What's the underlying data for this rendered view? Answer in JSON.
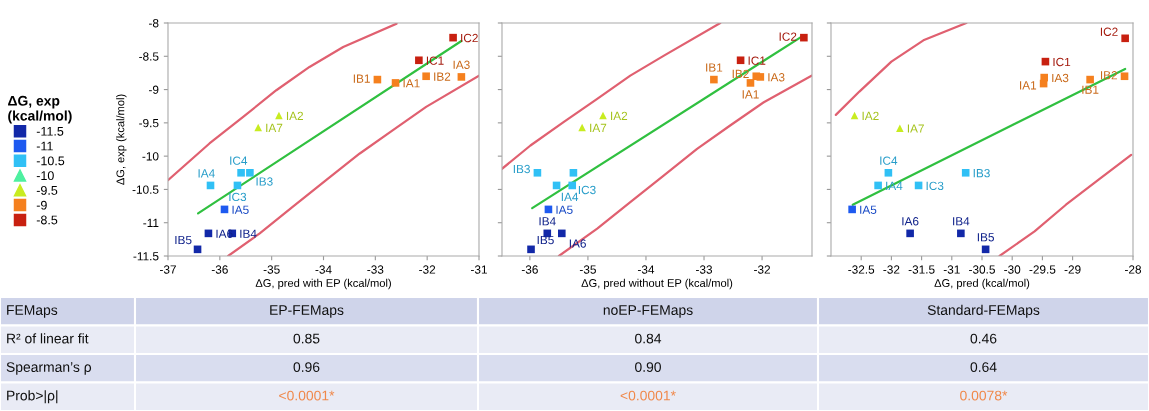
{
  "chart_data": [
    {
      "type": "scatter",
      "xlabel": "ΔG, pred with EP (kcal/mol)",
      "ylabel": "ΔG, exp (kcal/mol)",
      "legend_title": "ΔG, exp\n(kcal/mol)",
      "legend": "left",
      "xlim": [
        -37,
        -31
      ],
      "xticks": [
        -37,
        -36,
        -35,
        -34,
        -33,
        -32,
        -31
      ],
      "ylim": [
        -11.5,
        -8
      ],
      "yticks": [
        -11.5,
        -11,
        -10.5,
        -10,
        -9.5,
        -9,
        -8.5,
        -8
      ],
      "series": [
        {
          "type": "line",
          "color": "#e06070",
          "x": [
            -37,
            -36.2,
            -35.55,
            -34.91,
            -34.27,
            -33.62,
            -32.59
          ],
          "values": [
            -10.36,
            -9.81,
            -9.41,
            -9.01,
            -8.66,
            -8.36,
            -8.01
          ]
        },
        {
          "type": "line",
          "color": "#e06070",
          "x": [
            -35.84,
            -35.23,
            -34.59,
            -33.95,
            -33.3,
            -32.66,
            -32.02,
            -31
          ],
          "values": [
            -11.5,
            -11.16,
            -10.76,
            -10.36,
            -9.96,
            -9.61,
            -9.26,
            -8.79
          ]
        },
        {
          "type": "line",
          "color": "#30c040",
          "x": [
            -36.42,
            -31.34
          ],
          "values": [
            -10.86,
            -8.27
          ]
        },
        {
          "name": "-11.5",
          "color": "#1228a8",
          "marker": "square",
          "x": [
            -36.43,
            -36.22,
            -35.76
          ],
          "values": [
            -11.4,
            -11.16,
            -11.16
          ]
        },
        {
          "name": "-11",
          "color": "#1e5af0",
          "marker": "square",
          "x": [
            -35.91
          ],
          "values": [
            -10.8
          ]
        },
        {
          "name": "-10.5",
          "color": "#30c0f5",
          "marker": "square",
          "x": [
            -36.18,
            -35.66,
            -35.59,
            -35.42
          ],
          "values": [
            -10.44,
            -10.44,
            -10.25,
            -10.25
          ]
        },
        {
          "name": "-10",
          "color": "#4ef0a0",
          "marker": "triangle"
        },
        {
          "name": "-9.5",
          "color": "#c8ec20",
          "marker": "triangle",
          "x": [
            -35.26,
            -34.86
          ],
          "values": [
            -9.57,
            -9.39
          ]
        },
        {
          "name": "-9",
          "color": "#f5801e",
          "marker": "square",
          "x": [
            -32.96,
            -32.61,
            -32.02,
            -31.34
          ],
          "values": [
            -8.85,
            -8.9,
            -8.8,
            -8.81
          ]
        },
        {
          "name": "-8.5",
          "color": "#c82010",
          "marker": "square",
          "x": [
            -32.16,
            -31.5
          ],
          "values": [
            -8.56,
            -8.22
          ]
        }
      ],
      "annotations": [
        {
          "text": "IC2",
          "x": -31.5,
          "y": -8.22
        },
        {
          "text": "IC1",
          "x": -32.16,
          "y": -8.56
        },
        {
          "text": "IB2",
          "x": -32.02,
          "y": -8.8
        },
        {
          "text": "IA3",
          "x": -31.34,
          "y": -8.81
        },
        {
          "text": "IB1",
          "x": -32.96,
          "y": -8.85
        },
        {
          "text": "IA1",
          "x": -32.61,
          "y": -8.9
        },
        {
          "text": "IA2",
          "x": -34.86,
          "y": -9.39
        },
        {
          "text": "IA7",
          "x": -35.26,
          "y": -9.57
        },
        {
          "text": "IC4",
          "x": -35.59,
          "y": -10.25
        },
        {
          "text": "IB3",
          "x": -35.42,
          "y": -10.25
        },
        {
          "text": "IC3",
          "x": -35.66,
          "y": -10.44
        },
        {
          "text": "IA4",
          "x": -36.18,
          "y": -10.44
        },
        {
          "text": "IA5",
          "x": -35.91,
          "y": -10.8
        },
        {
          "text": "IA6",
          "x": -36.22,
          "y": -11.16
        },
        {
          "text": "IB4",
          "x": -35.76,
          "y": -11.16
        },
        {
          "text": "IB5",
          "x": -36.43,
          "y": -11.4
        }
      ]
    },
    {
      "type": "scatter",
      "xlabel": "ΔG, pred without EP (kcal/mol)",
      "tick_labels": "x",
      "xlim": [
        -36.48,
        -31.14
      ],
      "xticks": [
        -36,
        -35,
        -34,
        -33,
        -32
      ],
      "ylim": [
        -11.5,
        -8
      ],
      "yticks": [
        -11.5,
        -11,
        -10.5,
        -10,
        -9.5,
        -9,
        -8.5,
        -8
      ],
      "series": [
        {
          "type": "line",
          "color": "#e06070",
          "x": [
            -36.48,
            -35.99,
            -35.42,
            -34.84,
            -34.27,
            -33.69,
            -32.72
          ],
          "values": [
            -10.19,
            -9.84,
            -9.49,
            -9.14,
            -8.79,
            -8.49,
            -8.0
          ]
        },
        {
          "type": "line",
          "color": "#e06070",
          "x": [
            -35.5,
            -34.84,
            -34.27,
            -33.69,
            -33.12,
            -32.55,
            -31.97,
            -31.14
          ],
          "values": [
            -11.5,
            -11.09,
            -10.69,
            -10.29,
            -9.89,
            -9.54,
            -9.19,
            -8.79
          ]
        },
        {
          "type": "line",
          "color": "#30c040",
          "x": [
            -35.96,
            -31.29
          ],
          "values": [
            -10.78,
            -8.19
          ]
        },
        {
          "color": "#1228a8",
          "marker": "square",
          "x": [
            -35.98,
            -35.45,
            -35.7
          ],
          "values": [
            -11.4,
            -11.16,
            -11.16
          ]
        },
        {
          "color": "#1e5af0",
          "marker": "square",
          "x": [
            -35.68
          ],
          "values": [
            -10.8
          ]
        },
        {
          "color": "#30c0f5",
          "marker": "square",
          "x": [
            -35.54,
            -35.27,
            -35.25,
            -35.87
          ],
          "values": [
            -10.44,
            -10.44,
            -10.25,
            -10.25
          ]
        },
        {
          "color": "#c8ec20",
          "marker": "triangle",
          "x": [
            -35.1,
            -34.74
          ],
          "values": [
            -9.57,
            -9.39
          ]
        },
        {
          "color": "#f5801e",
          "marker": "square",
          "x": [
            -32.83,
            -32.2,
            -32.1,
            -32.03
          ],
          "values": [
            -8.85,
            -8.9,
            -8.8,
            -8.81
          ]
        },
        {
          "color": "#c82010",
          "marker": "square",
          "x": [
            -32.37,
            -31.28
          ],
          "values": [
            -8.56,
            -8.22
          ]
        }
      ],
      "annotations": [
        {
          "text": "IC2",
          "x": -31.28,
          "y": -8.22
        },
        {
          "text": "IC1",
          "x": -32.37,
          "y": -8.56
        },
        {
          "text": "IB2",
          "x": -32.1,
          "y": -8.8
        },
        {
          "text": "IA3",
          "x": -32.03,
          "y": -8.81
        },
        {
          "text": "IB1",
          "x": -32.83,
          "y": -8.85
        },
        {
          "text": "IA1",
          "x": -32.2,
          "y": -8.9
        },
        {
          "text": "IA2",
          "x": -34.74,
          "y": -9.39
        },
        {
          "text": "IA7",
          "x": -35.1,
          "y": -9.57
        },
        {
          "text": "IB3",
          "x": -35.87,
          "y": -10.25
        },
        {
          "text": "IC3",
          "x": -35.27,
          "y": -10.44
        },
        {
          "text": "IA4",
          "x": -35.54,
          "y": -10.44
        },
        {
          "text": "IA5",
          "x": -35.68,
          "y": -10.8
        },
        {
          "text": "IA6",
          "x": -35.45,
          "y": -11.16
        },
        {
          "text": "IB4",
          "x": -35.7,
          "y": -11.16
        },
        {
          "text": "IB5",
          "x": -35.98,
          "y": -11.4
        }
      ]
    },
    {
      "type": "scatter",
      "xlabel": "ΔG, pred (kcal/mol)",
      "tick_labels": "x",
      "xlim": [
        -33,
        -28
      ],
      "xticks": [
        -32.5,
        -32,
        -31.5,
        -31,
        -30.5,
        -30,
        -29.5,
        -29,
        -28
      ],
      "ylim": [
        -11.5,
        -8
      ],
      "yticks": [
        -11.5,
        -11,
        -10.5,
        -10,
        -9.5,
        -9,
        -8.5,
        -8
      ],
      "series": [
        {
          "type": "line",
          "color": "#e06070",
          "x": [
            -32.92,
            -32.53,
            -32.0,
            -31.47,
            -30.76
          ],
          "values": [
            -9.38,
            -9.03,
            -8.58,
            -8.26,
            -8.0
          ]
        },
        {
          "type": "line",
          "color": "#e06070",
          "x": [
            -30.21,
            -29.63,
            -29.11,
            -28.58,
            -28.03
          ],
          "values": [
            -11.5,
            -11.13,
            -10.73,
            -10.36,
            -9.98
          ]
        },
        {
          "type": "line",
          "color": "#30c040",
          "x": [
            -32.64,
            -28.13
          ],
          "values": [
            -10.73,
            -8.69
          ]
        },
        {
          "color": "#1228a8",
          "marker": "square",
          "x": [
            -30.44,
            -31.69,
            -30.85
          ],
          "values": [
            -11.4,
            -11.16,
            -11.16
          ]
        },
        {
          "color": "#1e5af0",
          "marker": "square",
          "x": [
            -32.65
          ],
          "values": [
            -10.8
          ]
        },
        {
          "color": "#30c0f5",
          "marker": "square",
          "x": [
            -32.22,
            -31.55,
            -32.05,
            -30.77
          ],
          "values": [
            -10.44,
            -10.44,
            -10.25,
            -10.25
          ]
        },
        {
          "color": "#c8ec20",
          "marker": "triangle",
          "x": [
            -31.86,
            -32.61
          ],
          "values": [
            -9.58,
            -9.39
          ]
        },
        {
          "color": "#f5801e",
          "marker": "square",
          "x": [
            -28.71,
            -29.48,
            -28.14,
            -29.47
          ],
          "values": [
            -8.85,
            -8.91,
            -8.8,
            -8.82
          ]
        },
        {
          "color": "#c82010",
          "marker": "square",
          "x": [
            -29.45,
            -28.13
          ],
          "values": [
            -8.58,
            -8.23
          ]
        }
      ],
      "annotations": [
        {
          "text": "IC2",
          "x": -28.13,
          "y": -8.23
        },
        {
          "text": "IC1",
          "x": -29.45,
          "y": -8.58
        },
        {
          "text": "IA3",
          "x": -29.47,
          "y": -8.82
        },
        {
          "text": "IA1",
          "x": -29.48,
          "y": -8.91
        },
        {
          "text": "IB1",
          "x": -28.71,
          "y": -8.85
        },
        {
          "text": "IB2",
          "x": -28.14,
          "y": -8.8
        },
        {
          "text": "IA2",
          "x": -32.61,
          "y": -9.39
        },
        {
          "text": "IA7",
          "x": -31.86,
          "y": -9.58
        },
        {
          "text": "IC4",
          "x": -32.05,
          "y": -10.25
        },
        {
          "text": "IA4",
          "x": -32.22,
          "y": -10.44
        },
        {
          "text": "IC3",
          "x": -31.55,
          "y": -10.44
        },
        {
          "text": "IB3",
          "x": -30.77,
          "y": -10.25
        },
        {
          "text": "IA5",
          "x": -32.65,
          "y": -10.8
        },
        {
          "text": "IA6",
          "x": -31.69,
          "y": -11.16
        },
        {
          "text": "IB4",
          "x": -30.85,
          "y": -11.16
        },
        {
          "text": "IB5",
          "x": -30.44,
          "y": -11.4
        }
      ]
    },
    {
      "type": "other",
      "annotations": [
        "FEMaps",
        "EP-FEMaps",
        "noEP-FEMaps",
        "Standard-FEMaps",
        "R² of linear fit",
        "0.85",
        "0.84",
        "0.46",
        "Spearman’s ρ",
        "0.96",
        "0.90",
        "0.64",
        "Prob>|ρ|",
        "<0.0001*",
        "<0.0001*",
        "0.0078*"
      ]
    }
  ]
}
